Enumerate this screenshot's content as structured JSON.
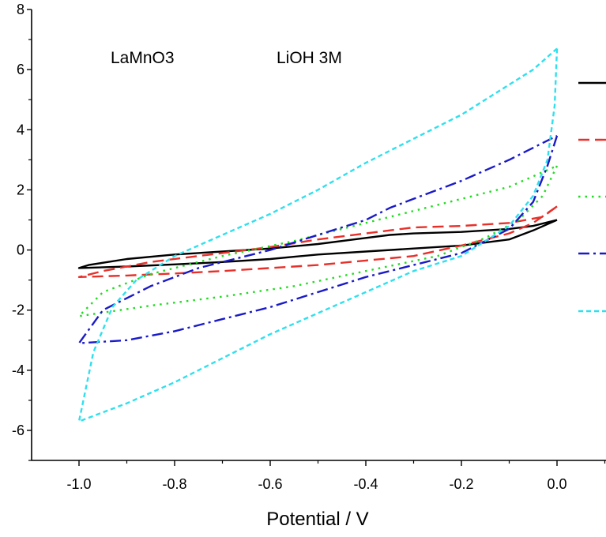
{
  "chart_data": {
    "type": "line",
    "title": "",
    "xlabel": "Potential / V",
    "ylabel": "",
    "xlim": [
      -1.1,
      0.1
    ],
    "ylim": [
      -7,
      8
    ],
    "x_ticks": [
      "-1.0",
      "-0.8",
      "-0.6",
      "-0.4",
      "-0.2",
      "0.0"
    ],
    "y_ticks": [
      "-6",
      "-4",
      "-2",
      "0",
      "2",
      "4",
      "6",
      "8"
    ],
    "annotations": [
      "LaMnO3",
      "LiOH 3M"
    ],
    "grid": false,
    "legend": "right (line samples only, labels not visible)",
    "series": [
      {
        "color": "#000000",
        "dash": "solid",
        "x": [
          0.0,
          -0.05,
          -0.1,
          -0.2,
          -0.3,
          -0.4,
          -0.5,
          -0.6,
          -0.7,
          -0.8,
          -0.9,
          -1.0,
          -0.98,
          -0.9,
          -0.8,
          -0.7,
          -0.6,
          -0.5,
          -0.4,
          -0.35,
          -0.3,
          -0.2,
          -0.1,
          -0.05,
          0.0
        ],
        "y": [
          1.0,
          0.65,
          0.35,
          0.15,
          0.05,
          -0.05,
          -0.15,
          -0.3,
          -0.4,
          -0.48,
          -0.55,
          -0.6,
          -0.5,
          -0.3,
          -0.15,
          -0.05,
          0.05,
          0.2,
          0.4,
          0.5,
          0.55,
          0.6,
          0.7,
          0.8,
          1.0
        ]
      },
      {
        "color": "#e8302a",
        "dash": "dash",
        "x": [
          0.0,
          -0.05,
          -0.1,
          -0.2,
          -0.3,
          -0.4,
          -0.5,
          -0.6,
          -0.7,
          -0.8,
          -0.9,
          -1.0,
          -0.95,
          -0.85,
          -0.7,
          -0.6,
          -0.5,
          -0.4,
          -0.3,
          -0.2,
          -0.1,
          -0.03,
          0.0
        ],
        "y": [
          1.45,
          0.9,
          0.55,
          0.15,
          -0.2,
          -0.35,
          -0.5,
          -0.6,
          -0.7,
          -0.78,
          -0.85,
          -0.9,
          -0.7,
          -0.4,
          -0.1,
          0.1,
          0.35,
          0.55,
          0.75,
          0.8,
          0.9,
          1.1,
          1.45
        ]
      },
      {
        "color": "#1fdc1f",
        "dash": "dot",
        "x": [
          0.0,
          -0.03,
          -0.08,
          -0.15,
          -0.25,
          -0.4,
          -0.55,
          -0.7,
          -0.85,
          -1.0,
          -0.95,
          -0.85,
          -0.7,
          -0.55,
          -0.4,
          -0.25,
          -0.1,
          0.0
        ],
        "y": [
          2.8,
          1.8,
          1.0,
          0.4,
          -0.2,
          -0.7,
          -1.2,
          -1.55,
          -1.85,
          -2.2,
          -1.4,
          -0.8,
          -0.2,
          0.3,
          0.9,
          1.5,
          2.1,
          2.8
        ]
      },
      {
        "color": "#1a1ac8",
        "dash": "dashdot",
        "x": [
          0.0,
          -0.02,
          -0.05,
          -0.1,
          -0.2,
          -0.3,
          -0.4,
          -0.5,
          -0.6,
          -0.7,
          -0.8,
          -0.9,
          -1.0,
          -0.95,
          -0.85,
          -0.75,
          -0.6,
          -0.5,
          -0.4,
          -0.35,
          -0.3,
          -0.2,
          -0.1,
          0.0
        ],
        "y": [
          3.8,
          2.8,
          1.6,
          0.7,
          -0.1,
          -0.5,
          -0.9,
          -1.4,
          -1.9,
          -2.3,
          -2.7,
          -3.0,
          -3.1,
          -2.0,
          -1.2,
          -0.6,
          0.0,
          0.5,
          1.0,
          1.4,
          1.7,
          2.3,
          3.0,
          3.8
        ]
      },
      {
        "color": "#2ee0ee",
        "dash": "dash-fine",
        "x": [
          0.0,
          -0.005,
          -0.02,
          -0.05,
          -0.1,
          -0.2,
          -0.3,
          -0.4,
          -0.5,
          -0.6,
          -0.7,
          -0.8,
          -0.9,
          -1.0,
          -0.97,
          -0.93,
          -0.88,
          -0.8,
          -0.7,
          -0.6,
          -0.5,
          -0.4,
          -0.3,
          -0.2,
          -0.1,
          -0.05,
          0.0
        ],
        "y": [
          6.7,
          4.8,
          3.0,
          1.8,
          0.8,
          -0.2,
          -0.7,
          -1.4,
          -2.1,
          -2.8,
          -3.6,
          -4.4,
          -5.1,
          -5.7,
          -3.4,
          -1.9,
          -1.0,
          -0.2,
          0.5,
          1.2,
          2.0,
          2.9,
          3.7,
          4.5,
          5.5,
          6.0,
          6.7
        ]
      }
    ],
    "legend_samples": [
      {
        "color": "#000000",
        "dash": "solid"
      },
      {
        "color": "#e8302a",
        "dash": "dash"
      },
      {
        "color": "#1fdc1f",
        "dash": "dot"
      },
      {
        "color": "#1a1ac8",
        "dash": "dashdot"
      },
      {
        "color": "#2ee0ee",
        "dash": "dash-fine"
      }
    ]
  }
}
